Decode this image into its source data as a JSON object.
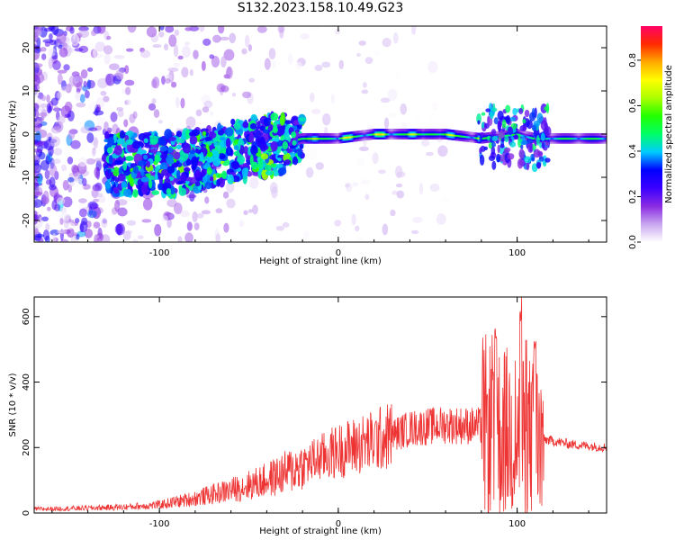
{
  "title": "S132.2023.158.10.49.G23",
  "chart_data": [
    {
      "type": "heatmap",
      "xlabel": "Height of straight line (km)",
      "ylabel": "Frequency (Hz)",
      "xlim": [
        -170,
        150
      ],
      "ylim": [
        -25,
        25
      ],
      "xticks": [
        -100,
        0,
        100
      ],
      "xtick_labels": [
        "-100",
        "0",
        "100"
      ],
      "yticks": [
        -20,
        -10,
        0,
        10,
        20
      ],
      "ytick_labels": [
        "-20",
        "-10",
        "0",
        "10",
        "20"
      ],
      "grid": false,
      "colorbar": {
        "label": "Normalized spectral amplitude",
        "range": [
          0,
          0.95
        ],
        "ticks": [
          0,
          0.2,
          0.4,
          0.6,
          0.8
        ],
        "tick_labels": [
          "0.0",
          "0.2",
          "0.4",
          "0.6",
          "0.8"
        ],
        "colormap": [
          "#ffffff",
          "#c9a6f0",
          "#8a2be2",
          "#3b00ff",
          "#0000ff",
          "#00ccff",
          "#00ff66",
          "#22ff00",
          "#aaff00",
          "#ffff00",
          "#ffaa00",
          "#ff2a00",
          "#ff0066"
        ]
      },
      "ridge": {
        "description_points": [
          {
            "x": -120,
            "y": -7
          },
          {
            "x": -90,
            "y": -7
          },
          {
            "x": -60,
            "y": -4
          },
          {
            "x": -30,
            "y": -2
          },
          {
            "x": -20,
            "y": -1
          },
          {
            "x": 0,
            "y": -1
          },
          {
            "x": 20,
            "y": 0
          },
          {
            "x": 60,
            "y": 0
          },
          {
            "x": 80,
            "y": -1
          },
          {
            "x": 100,
            "y": 0
          },
          {
            "x": 110,
            "y": -1
          },
          {
            "x": 150,
            "y": -1
          }
        ]
      }
    },
    {
      "type": "line",
      "xlabel": "Height of straight line (km)",
      "ylabel": "SNR (10 * v/v)",
      "xlim": [
        -170,
        150
      ],
      "ylim": [
        0,
        660
      ],
      "xticks": [
        -100,
        0,
        100
      ],
      "xtick_labels": [
        "-100",
        "0",
        "100"
      ],
      "yticks": [
        0,
        200,
        400,
        600
      ],
      "ytick_labels": [
        "0",
        "200",
        "400",
        "600"
      ],
      "grid": false,
      "series_color": "#ee3333",
      "envelope": [
        {
          "x": -170,
          "y": 12
        },
        {
          "x": -140,
          "y": 15
        },
        {
          "x": -120,
          "y": 18
        },
        {
          "x": -100,
          "y": 25
        },
        {
          "x": -80,
          "y": 45
        },
        {
          "x": -60,
          "y": 70
        },
        {
          "x": -40,
          "y": 100
        },
        {
          "x": -20,
          "y": 145
        },
        {
          "x": 0,
          "y": 190
        },
        {
          "x": 20,
          "y": 220
        },
        {
          "x": 40,
          "y": 258
        },
        {
          "x": 60,
          "y": 270
        },
        {
          "x": 80,
          "y": 265
        },
        {
          "x": 90,
          "y": 250
        },
        {
          "x": 100,
          "y": 240
        },
        {
          "x": 110,
          "y": 230
        },
        {
          "x": 130,
          "y": 210
        },
        {
          "x": 150,
          "y": 200
        }
      ],
      "peaks": [
        {
          "x": 88,
          "y": 590
        },
        {
          "x": 102,
          "y": 660
        },
        {
          "x": 110,
          "y": 560
        }
      ]
    }
  ]
}
